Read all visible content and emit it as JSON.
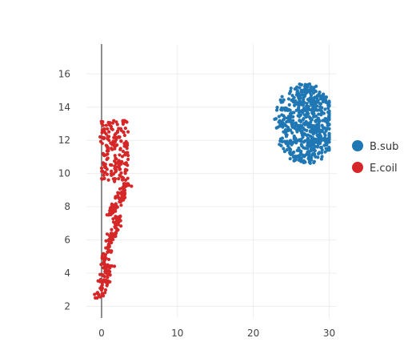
{
  "chart_data": {
    "type": "scatter",
    "title": "",
    "xlabel": "",
    "ylabel": "",
    "xlim": [
      -2,
      31
    ],
    "ylim": [
      1.3,
      17.8
    ],
    "x_ticks": [
      0,
      10,
      20,
      30
    ],
    "y_ticks": [
      2,
      4,
      6,
      8,
      10,
      12,
      14,
      16
    ],
    "grid": true,
    "zero_line_x": true,
    "legend_position": "right",
    "series": [
      {
        "name": "B.sub",
        "color": "#1f77b4",
        "point_count": 600,
        "cluster": {
          "x_range": [
            22.5,
            30.0
          ],
          "y_range": [
            10.6,
            15.4
          ],
          "center": [
            26.5,
            13.0
          ]
        }
      },
      {
        "name": "E.coil",
        "color": "#d62728",
        "point_count": 420,
        "segments": [
          {
            "x_range": [
              -0.5,
              1.0
            ],
            "y_range": [
              2.5,
              4.5
            ]
          },
          {
            "x_range": [
              0.2,
              2.2
            ],
            "y_range": [
              4.5,
              7.5
            ]
          },
          {
            "x_range": [
              1.2,
              3.5
            ],
            "y_range": [
              7.5,
              9.5
            ]
          },
          {
            "x_range": [
              -0.2,
              3.5
            ],
            "y_range": [
              9.5,
              13.2
            ]
          }
        ]
      }
    ]
  }
}
